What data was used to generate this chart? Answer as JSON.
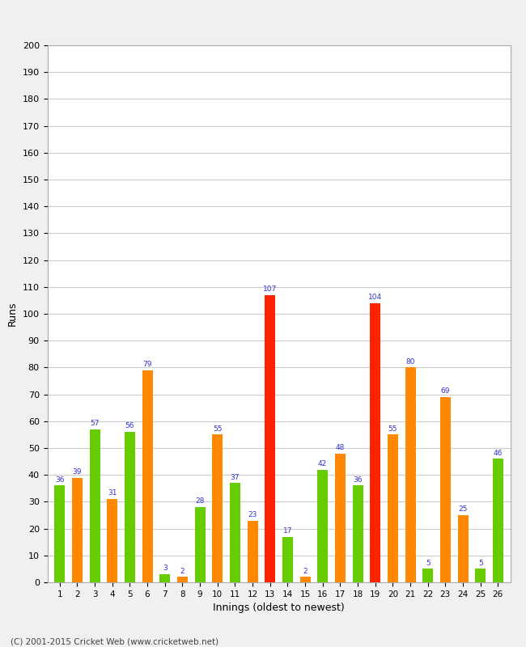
{
  "xlabel": "Innings (oldest to newest)",
  "ylabel": "Runs",
  "innings": [
    1,
    2,
    3,
    4,
    5,
    6,
    7,
    8,
    9,
    10,
    11,
    12,
    13,
    14,
    15,
    16,
    17,
    18,
    19,
    20,
    21,
    22,
    23,
    24,
    25,
    26
  ],
  "values": [
    36,
    39,
    57,
    31,
    56,
    79,
    3,
    2,
    28,
    55,
    37,
    23,
    107,
    17,
    2,
    42,
    48,
    36,
    104,
    55,
    80,
    5,
    69,
    25,
    5,
    46
  ],
  "colors": [
    "#66cc00",
    "#ff8800",
    "#66cc00",
    "#ff8800",
    "#66cc00",
    "#ff8800",
    "#66cc00",
    "#ff8800",
    "#66cc00",
    "#ff8800",
    "#66cc00",
    "#ff8800",
    "#ff2200",
    "#66cc00",
    "#ff8800",
    "#66cc00",
    "#ff8800",
    "#66cc00",
    "#ff2200",
    "#ff8800",
    "#ff8800",
    "#66cc00",
    "#ff8800",
    "#ff8800",
    "#66cc00",
    "#66cc00"
  ],
  "ylim": [
    0,
    200
  ],
  "yticks": [
    0,
    10,
    20,
    30,
    40,
    50,
    60,
    70,
    80,
    90,
    100,
    110,
    120,
    130,
    140,
    150,
    160,
    170,
    180,
    190,
    200
  ],
  "label_color": "#3333cc",
  "background_color": "#f0f0f0",
  "plot_bg_color": "#ffffff",
  "grid_color": "#cccccc",
  "footer": "(C) 2001-2015 Cricket Web (www.cricketweb.net)",
  "bar_width": 0.6
}
